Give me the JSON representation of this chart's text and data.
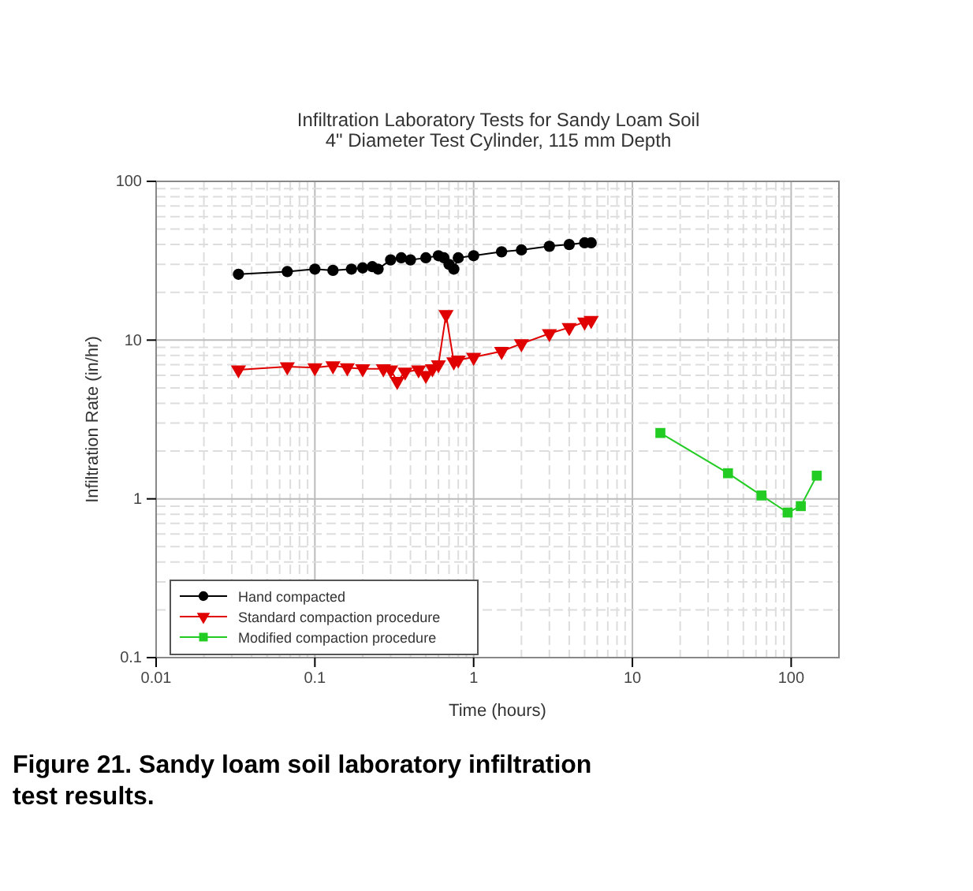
{
  "chart_data": {
    "type": "line",
    "title": "Infiltration Laboratory Tests for Sandy Loam Soil",
    "subtitle": "4\" Diameter Test Cylinder, 115 mm Depth",
    "xlabel": "Time (hours)",
    "ylabel": "Infiltration Rate (in/hr)",
    "log": "xy",
    "grid": true,
    "legend": "bottom left",
    "xlim": [
      0.01,
      200
    ],
    "ylim": [
      0.1,
      100
    ],
    "xticks": [
      0.01,
      0.1,
      1,
      10,
      100
    ],
    "yticks": [
      0.1,
      1,
      10,
      100
    ],
    "annotations": [
      "Figure 21. Sandy loam soil laboratory infiltration test results."
    ],
    "series": [
      {
        "name": "Hand compacted",
        "color": "#000000",
        "marker": "circle",
        "x": [
          0.033,
          0.067,
          0.1,
          0.13,
          0.17,
          0.2,
          0.23,
          0.25,
          0.3,
          0.35,
          0.4,
          0.5,
          0.6,
          0.65,
          0.7,
          0.75,
          0.8,
          1,
          1.5,
          2,
          3,
          4,
          5,
          5.5
        ],
        "values": [
          26,
          27,
          28,
          27.5,
          28,
          28.5,
          29,
          28,
          32,
          33,
          32,
          33,
          34,
          33,
          30,
          28,
          33,
          34,
          36,
          37,
          39,
          40,
          41,
          41
        ]
      },
      {
        "name": "Standard compaction procedure",
        "color": "#e00000",
        "marker": "triangle",
        "x": [
          0.033,
          0.067,
          0.1,
          0.13,
          0.16,
          0.2,
          0.27,
          0.3,
          0.33,
          0.37,
          0.45,
          0.5,
          0.55,
          0.6,
          0.67,
          0.75,
          0.8,
          1,
          1.5,
          2,
          3,
          4,
          5,
          5.5
        ],
        "values": [
          6.5,
          6.8,
          6.7,
          6.9,
          6.7,
          6.6,
          6.6,
          6.5,
          5.5,
          6.3,
          6.5,
          6,
          6.6,
          7,
          14.5,
          7.3,
          7.5,
          7.8,
          8.5,
          9.5,
          11,
          12,
          13,
          13.3
        ]
      },
      {
        "name": "Modified compaction procedure",
        "color": "#22cc22",
        "marker": "square",
        "x": [
          15,
          40,
          65,
          95,
          115,
          145
        ],
        "values": [
          2.6,
          1.45,
          1.05,
          0.82,
          0.9,
          1.4
        ]
      }
    ]
  }
}
